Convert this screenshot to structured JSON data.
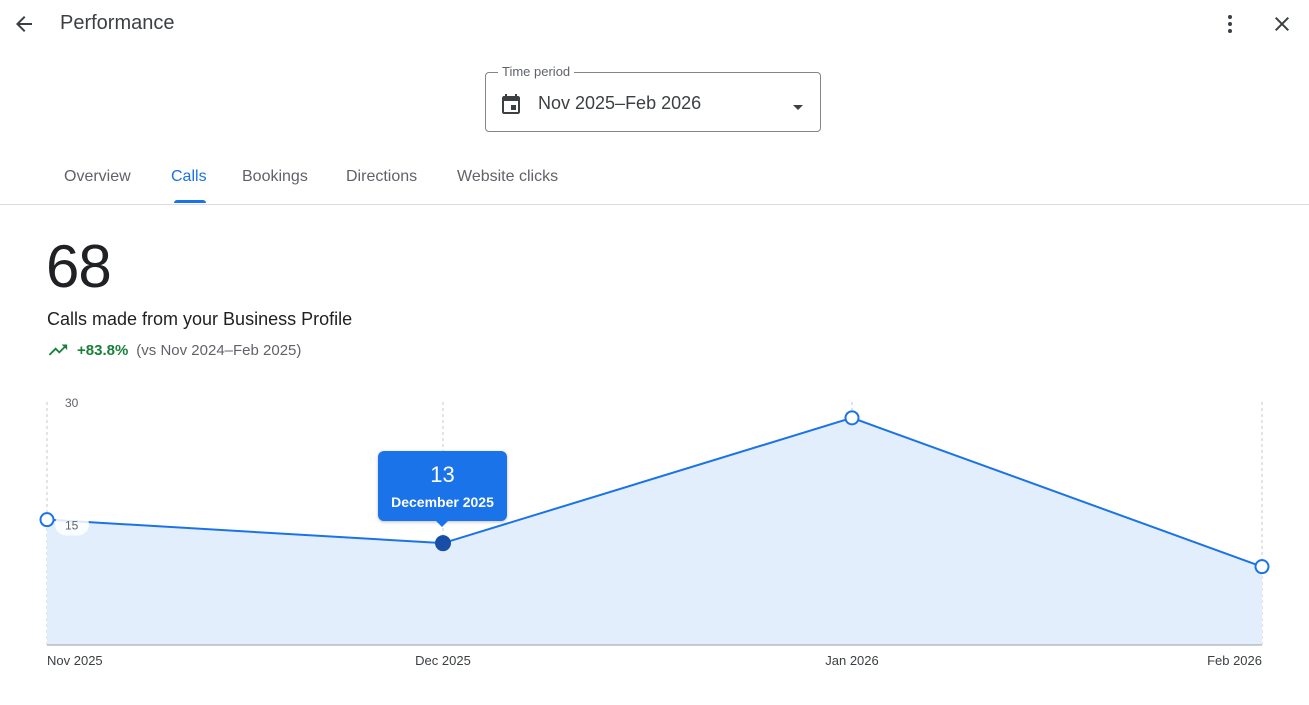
{
  "header": {
    "title": "Performance",
    "back_icon": "arrow-back-icon",
    "menu_icon": "more-vert-icon",
    "close_icon": "close-icon"
  },
  "time_period": {
    "label": "Time period",
    "value": "Nov 2025–Feb 2026",
    "icon": "calendar-icon"
  },
  "tabs": [
    {
      "label": "Overview",
      "active": false
    },
    {
      "label": "Calls",
      "active": true
    },
    {
      "label": "Bookings",
      "active": false
    },
    {
      "label": "Directions",
      "active": false
    },
    {
      "label": "Website clicks",
      "active": false
    }
  ],
  "metric": {
    "value": "68",
    "label": "Calls made from your Business Profile",
    "change": "+83.8%",
    "comparison": "(vs Nov 2024–Feb 2025)"
  },
  "tooltip": {
    "value": "13",
    "label": "December 2025"
  },
  "colors": {
    "accent": "#1a73e8",
    "positive": "#188038",
    "area_fill": "#e3eefc"
  },
  "chart_data": {
    "type": "area",
    "categories": [
      "Nov 2025",
      "Dec 2025",
      "Jan 2026",
      "Feb 2026"
    ],
    "values": [
      16,
      13,
      29,
      10
    ],
    "y_ticks": [
      "30",
      "15"
    ],
    "ylim": [
      0,
      30
    ],
    "highlighted_index": 1,
    "grid": "vertical-dashed"
  }
}
